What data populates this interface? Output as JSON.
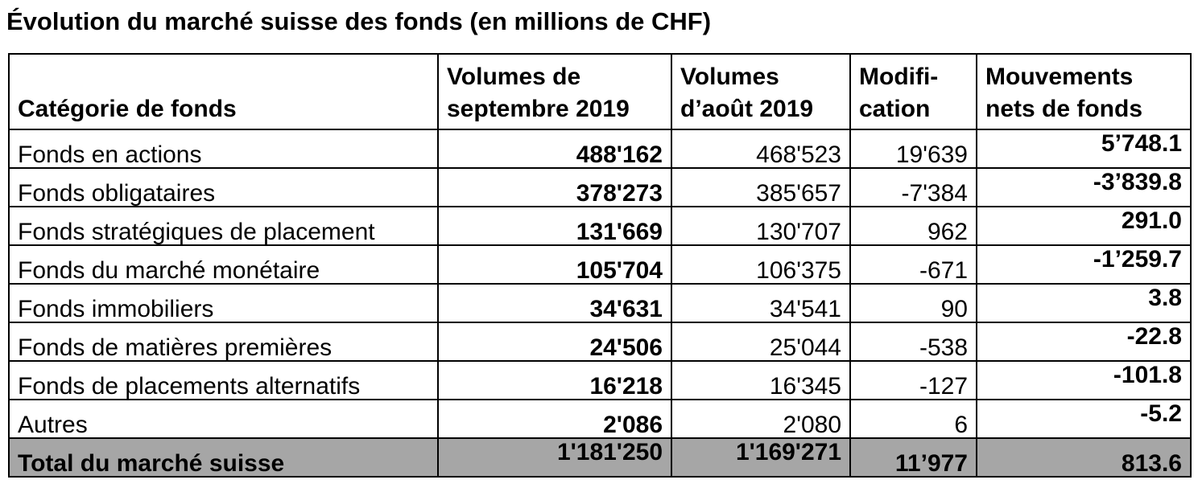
{
  "title": "Évolution du marché suisse des fonds (en millions de CHF)",
  "table": {
    "headers": [
      {
        "lines": [
          "",
          "Catégorie de fonds"
        ]
      },
      {
        "lines": [
          "Volumes de",
          "septembre 2019"
        ]
      },
      {
        "lines": [
          "Volumes",
          "d’août 2019"
        ]
      },
      {
        "lines": [
          "Modifi-",
          "cation"
        ]
      },
      {
        "lines": [
          "Mouvements",
          "nets de fonds"
        ]
      }
    ],
    "rows": [
      {
        "category": "Fonds en actions",
        "sep2019": "488'162",
        "aug2019": "468'523",
        "change": "19'639",
        "net_flows": "5’748.1"
      },
      {
        "category": "Fonds obligataires",
        "sep2019": "378'273",
        "aug2019": "385'657",
        "change": "-7'384",
        "net_flows": "-3’839.8"
      },
      {
        "category": "Fonds stratégiques de placement",
        "sep2019": "131'669",
        "aug2019": "130'707",
        "change": "962",
        "net_flows": "291.0"
      },
      {
        "category": "Fonds du marché monétaire",
        "sep2019": "105'704",
        "aug2019": "106'375",
        "change": "-671",
        "net_flows": "-1’259.7"
      },
      {
        "category": "Fonds immobiliers",
        "sep2019": "34'631",
        "aug2019": "34'541",
        "change": "90",
        "net_flows": "3.8"
      },
      {
        "category": "Fonds de matières premières",
        "sep2019": "24'506",
        "aug2019": "25'044",
        "change": "-538",
        "net_flows": "-22.8"
      },
      {
        "category": "Fonds de placements alternatifs",
        "sep2019": "16'218",
        "aug2019": "16'345",
        "change": "-127",
        "net_flows": "-101.8"
      },
      {
        "category": "Autres",
        "sep2019": "2'086",
        "aug2019": "2'080",
        "change": "6",
        "net_flows": "-5.2"
      }
    ],
    "total": {
      "category": "Total du marché suisse",
      "sep2019": "1'181'250",
      "aug2019": "1'169'271",
      "change": "11’977",
      "net_flows": "813.6"
    }
  },
  "colors": {
    "total_row_background": "#a6a6a6",
    "border": "#000000"
  }
}
